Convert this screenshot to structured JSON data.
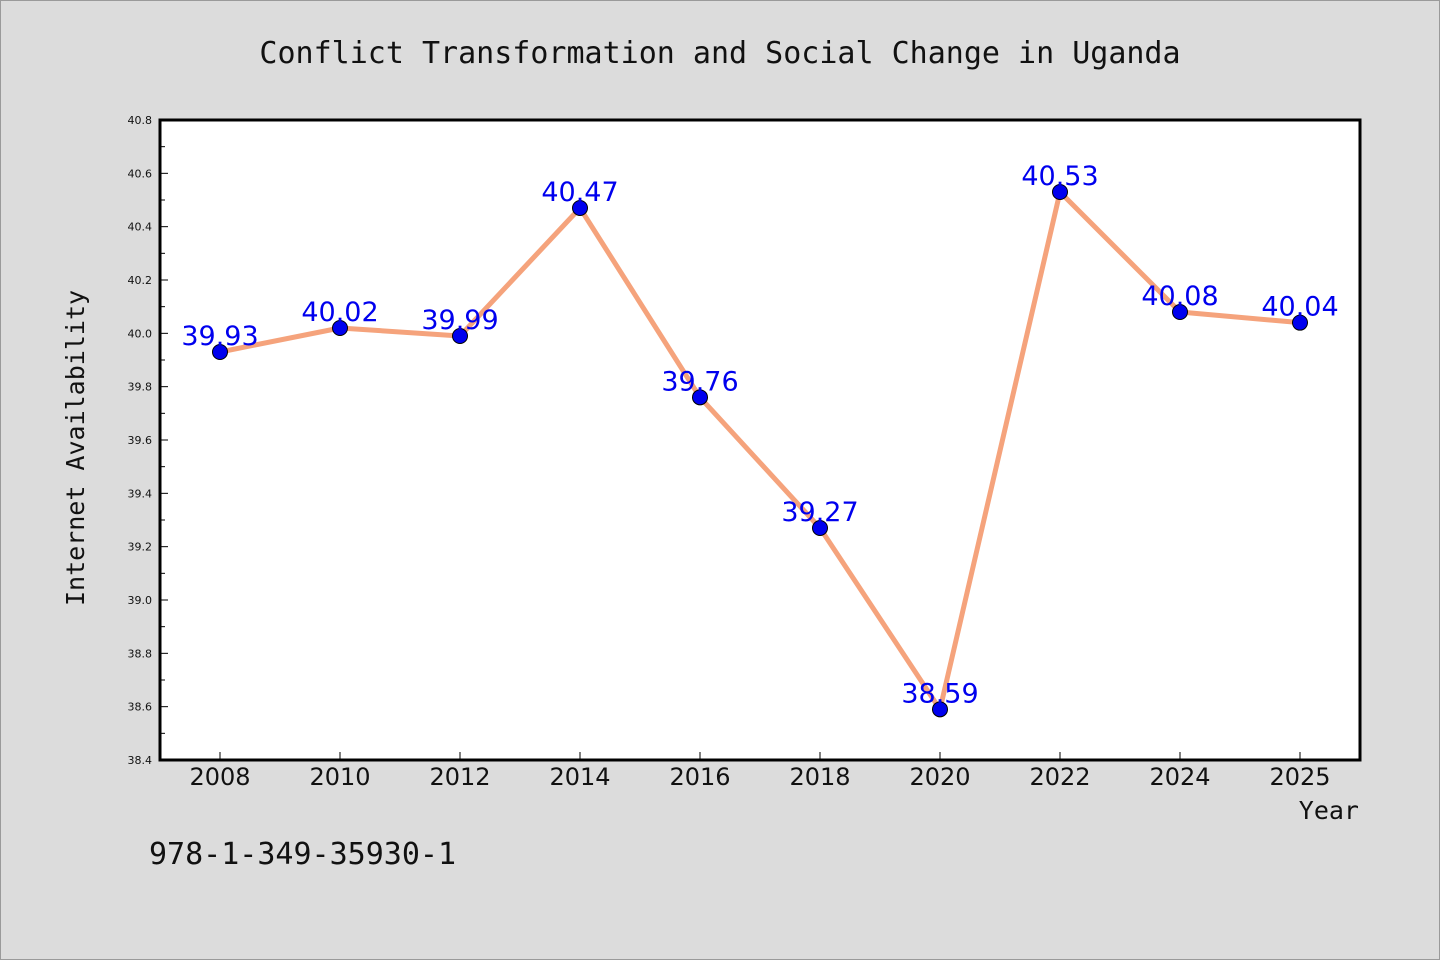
{
  "isbn_text": "978-1-349-35930-1",
  "chart_data": {
    "type": "line",
    "title": "Conflict Transformation and Social Change in Uganda",
    "xlabel": "Year",
    "ylabel": "Internet Availability",
    "categories": [
      "2008",
      "2010",
      "2012",
      "2014",
      "2016",
      "2018",
      "2020",
      "2022",
      "2024",
      "2025"
    ],
    "values": [
      39.93,
      40.02,
      39.99,
      40.47,
      39.76,
      39.27,
      38.59,
      40.53,
      40.08,
      40.04
    ],
    "data_labels": [
      "39.93",
      "40.02",
      "39.99",
      "40.47",
      "39.76",
      "39.27",
      "38.59",
      "40.53",
      "40.08",
      "40.04"
    ],
    "yticks": [
      "38.4",
      "38.6",
      "38.8",
      "39.0",
      "39.2",
      "39.4",
      "39.6",
      "39.8",
      "40.0",
      "40.2",
      "40.4",
      "40.6",
      "40.8"
    ],
    "ylim": [
      38.4,
      40.8
    ],
    "grid": false,
    "line_color": "#f5a37c",
    "marker_color": "#0000ee",
    "label_color": "#0000ee"
  }
}
